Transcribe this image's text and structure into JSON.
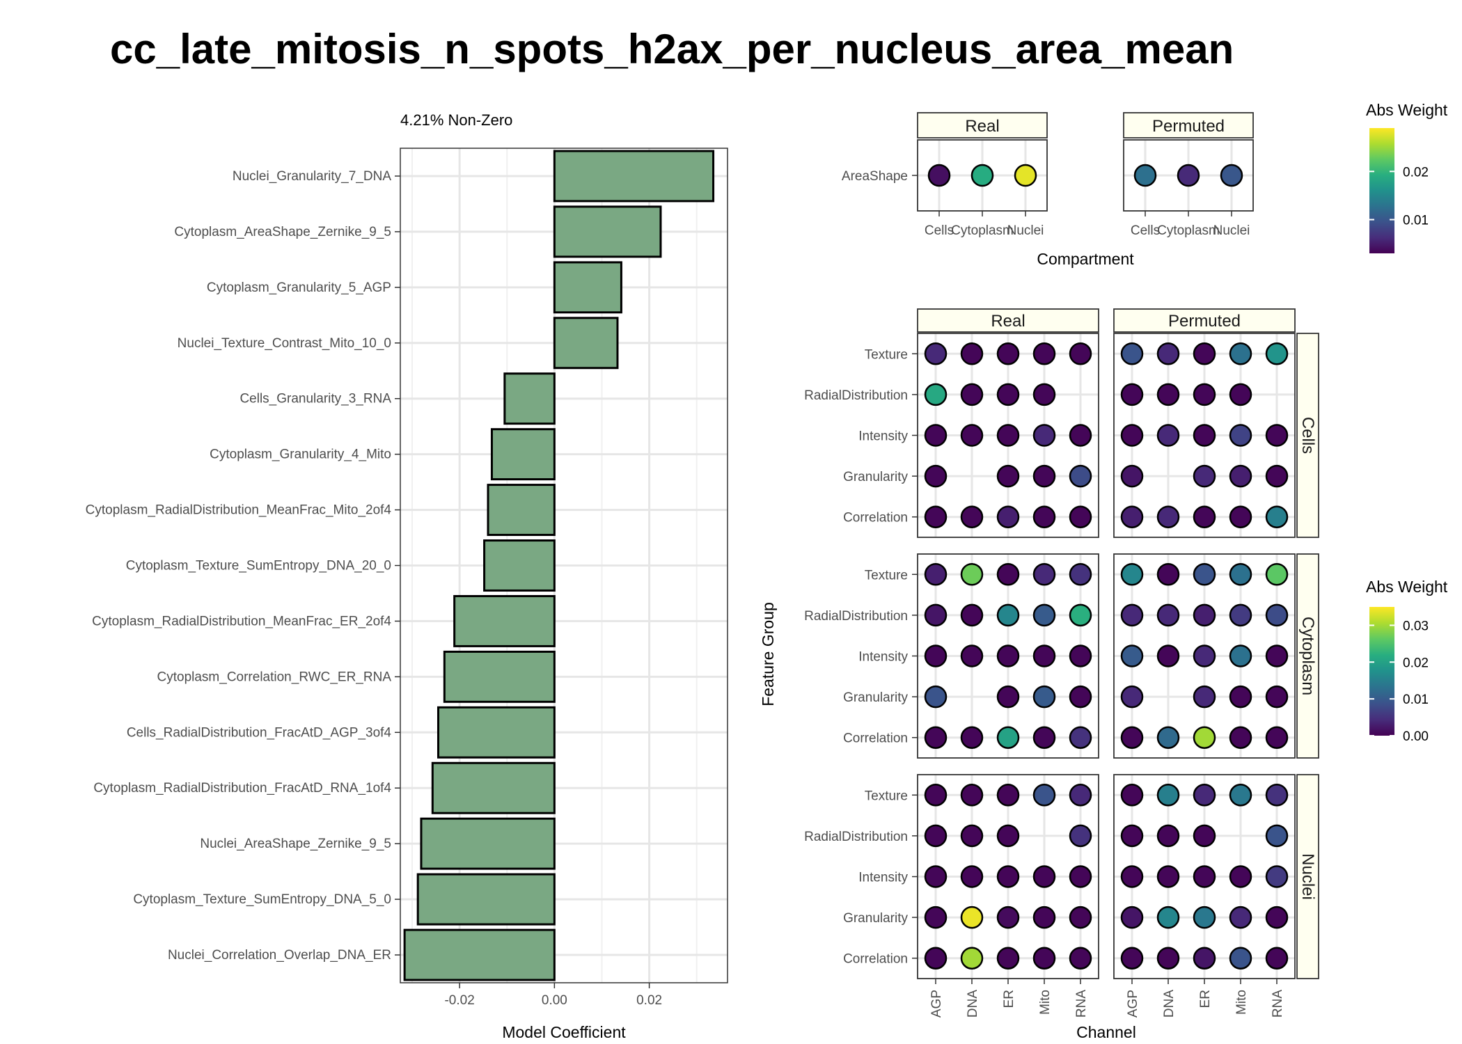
{
  "page_title": "cc_late_mitosis_n_spots_h2ax_per_nucleus_area_mean",
  "chart_data": [
    {
      "type": "bar",
      "orientation": "horizontal",
      "subtitle": "4.21% Non-Zero",
      "xlabel": "Model Coefficient",
      "ylabel": "",
      "xlim": [
        -0.0325,
        0.0365
      ],
      "x_ticks": [
        "-0.02",
        "0.00",
        "0.02"
      ],
      "x_tick_values": [
        -0.02,
        0.0,
        0.02
      ],
      "grid": true,
      "bar_fill": "#7aa883",
      "bar_stroke": "#000000",
      "categories": [
        "Nuclei_Granularity_7_DNA",
        "Cytoplasm_AreaShape_Zernike_9_5",
        "Cytoplasm_Granularity_5_AGP",
        "Nuclei_Texture_Contrast_Mito_10_0",
        "Cells_Granularity_3_RNA",
        "Cytoplasm_Granularity_4_Mito",
        "Cytoplasm_RadialDistribution_MeanFrac_Mito_2of4",
        "Cytoplasm_Texture_SumEntropy_DNA_20_0",
        "Cytoplasm_RadialDistribution_MeanFrac_ER_2of4",
        "Cytoplasm_Correlation_RWC_ER_RNA",
        "Cells_RadialDistribution_FracAtD_AGP_3of4",
        "Cytoplasm_RadialDistribution_FracAtD_RNA_1of4",
        "Nuclei_AreaShape_Zernike_9_5",
        "Cytoplasm_Texture_SumEntropy_DNA_5_0",
        "Nuclei_Correlation_Overlap_DNA_ER"
      ],
      "values": [
        0.0335,
        0.0224,
        0.0141,
        0.0133,
        -0.0105,
        -0.0132,
        -0.014,
        -0.0148,
        -0.0211,
        -0.0232,
        -0.0245,
        -0.0257,
        -0.0281,
        -0.0288,
        -0.0316
      ]
    },
    {
      "type": "scatter",
      "subtitle": "AreaShape",
      "xlabel": "Compartment",
      "x_categories": [
        "Cells",
        "Cytoplasm",
        "Nuclei"
      ],
      "y_categories": [
        "AreaShape"
      ],
      "panels": [
        {
          "name": "Real",
          "values": [
            [
              0.004,
              0.019,
              0.028
            ]
          ]
        },
        {
          "name": "Permuted",
          "values": [
            [
              0.0125,
              0.006,
              0.01
            ]
          ]
        }
      ],
      "legend": {
        "title": "Abs Weight",
        "range": [
          0.003,
          0.029
        ],
        "ticks": [
          "0.01",
          "0.02"
        ],
        "tick_values": [
          0.01,
          0.02
        ],
        "position": "right"
      }
    },
    {
      "type": "scatter",
      "xlabel": "Channel",
      "ylabel": "Feature Group",
      "x_categories": [
        "AGP",
        "DNA",
        "ER",
        "Mito",
        "RNA"
      ],
      "y_categories": [
        "Texture",
        "RadialDistribution",
        "Intensity",
        "Granularity",
        "Correlation"
      ],
      "column_panels": [
        "Real",
        "Permuted"
      ],
      "row_panels": [
        "Cells",
        "Cytoplasm",
        "Nuclei"
      ],
      "cells": {
        "Cells": {
          "Real": [
            [
              0.004,
              0.0005,
              0.0005,
              0.0005,
              0.0005
            ],
            [
              0.021,
              0.0005,
              0.0005,
              0.0005,
              null
            ],
            [
              0.0005,
              0.0005,
              0.0005,
              0.004,
              0.0005
            ],
            [
              0.0005,
              null,
              0.0005,
              0.0005,
              0.008
            ],
            [
              0.0005,
              0.0005,
              0.003,
              0.0005,
              0.0005
            ]
          ],
          "Permuted": [
            [
              0.009,
              0.004,
              0.0005,
              0.013,
              0.018
            ],
            [
              0.0005,
              0.0005,
              0.0005,
              0.0005,
              null
            ],
            [
              0.0005,
              0.004,
              0.0005,
              0.007,
              0.0005
            ],
            [
              0.002,
              null,
              0.004,
              0.003,
              0.0005
            ],
            [
              0.003,
              0.004,
              0.0005,
              0.0005,
              0.015
            ]
          ]
        },
        "Cytoplasm": {
          "Real": [
            [
              0.003,
              0.027,
              0.0005,
              0.004,
              0.005
            ],
            [
              0.002,
              0.0005,
              0.016,
              0.01,
              0.022
            ],
            [
              0.0005,
              0.0005,
              0.0005,
              0.0005,
              0.0005
            ],
            [
              0.009,
              null,
              0.0005,
              0.01,
              0.0005
            ],
            [
              0.0005,
              0.0005,
              0.02,
              0.0005,
              0.005
            ]
          ],
          "Permuted": [
            [
              0.016,
              0.0005,
              0.009,
              0.013,
              0.026
            ],
            [
              0.004,
              0.004,
              0.003,
              0.006,
              0.008
            ],
            [
              0.01,
              0.0005,
              0.004,
              0.013,
              0.0005
            ],
            [
              0.004,
              null,
              0.004,
              0.0005,
              0.0005
            ],
            [
              0.0005,
              0.012,
              0.03,
              0.0005,
              0.0005
            ]
          ]
        },
        "Nuclei": {
          "Real": [
            [
              0.0005,
              0.0005,
              0.0005,
              0.009,
              0.004
            ],
            [
              0.0005,
              0.0005,
              0.0005,
              null,
              0.005
            ],
            [
              0.0005,
              0.0005,
              0.0005,
              0.0005,
              0.0005
            ],
            [
              0.0005,
              0.034,
              0.001,
              0.0005,
              0.0005
            ],
            [
              0.0005,
              0.03,
              0.0005,
              0.0005,
              0.0005
            ]
          ],
          "Permuted": [
            [
              0.0005,
              0.015,
              0.004,
              0.014,
              0.005
            ],
            [
              0.0005,
              0.0005,
              0.0005,
              null,
              0.009
            ],
            [
              0.0005,
              0.0005,
              0.0005,
              0.0005,
              0.006
            ],
            [
              0.002,
              0.016,
              0.014,
              0.004,
              0.0005
            ],
            [
              0.0005,
              0.0005,
              0.002,
              0.009,
              0.0005
            ]
          ]
        }
      },
      "legend": {
        "title": "Abs Weight",
        "range": [
          0,
          0.035
        ],
        "ticks": [
          "0.00",
          "0.01",
          "0.02",
          "0.03"
        ],
        "tick_values": [
          0,
          0.01,
          0.02,
          0.03
        ],
        "position": "right"
      }
    }
  ]
}
